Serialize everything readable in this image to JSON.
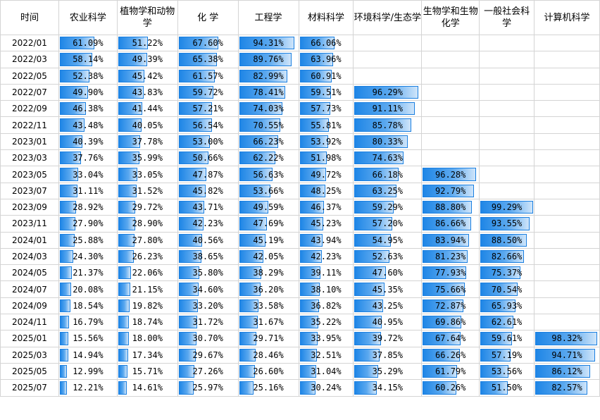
{
  "headers": [
    "时间",
    "农业科学",
    "植物学和动物学",
    "化 学",
    "工程学",
    "材料科学",
    "环境科学/生态学",
    "生物学和生物化学",
    "一般社会科学",
    "计算机科学"
  ],
  "rows": [
    {
      "date": "2022/01",
      "values": [
        "61.09%",
        "51.22%",
        "67.60%",
        "94.31%",
        "66.06%",
        "",
        "",
        "",
        ""
      ]
    },
    {
      "date": "2022/03",
      "values": [
        "58.14%",
        "49.39%",
        "65.38%",
        "89.76%",
        "63.96%",
        "",
        "",
        "",
        ""
      ]
    },
    {
      "date": "2022/05",
      "values": [
        "52.38%",
        "45.42%",
        "61.57%",
        "82.99%",
        "60.91%",
        "",
        "",
        "",
        ""
      ]
    },
    {
      "date": "2022/07",
      "values": [
        "49.90%",
        "43.83%",
        "59.72%",
        "78.41%",
        "59.51%",
        "96.29%",
        "",
        "",
        ""
      ]
    },
    {
      "date": "2022/09",
      "values": [
        "46.38%",
        "41.44%",
        "57.21%",
        "74.03%",
        "57.73%",
        "91.11%",
        "",
        "",
        ""
      ]
    },
    {
      "date": "2022/11",
      "values": [
        "43.48%",
        "40.05%",
        "56.54%",
        "70.55%",
        "55.81%",
        "85.78%",
        "",
        "",
        ""
      ]
    },
    {
      "date": "2023/01",
      "values": [
        "40.39%",
        "37.78%",
        "53.00%",
        "66.23%",
        "53.92%",
        "80.33%",
        "",
        "",
        ""
      ]
    },
    {
      "date": "2023/03",
      "values": [
        "37.76%",
        "35.99%",
        "50.66%",
        "62.22%",
        "51.98%",
        "74.63%",
        "",
        "",
        ""
      ]
    },
    {
      "date": "2023/05",
      "values": [
        "33.04%",
        "33.05%",
        "47.87%",
        "56.63%",
        "49.72%",
        "66.18%",
        "96.28%",
        "",
        ""
      ]
    },
    {
      "date": "2023/07",
      "values": [
        "31.11%",
        "31.52%",
        "45.82%",
        "53.66%",
        "48.25%",
        "63.25%",
        "92.79%",
        "",
        ""
      ]
    },
    {
      "date": "2023/09",
      "values": [
        "28.92%",
        "29.72%",
        "43.71%",
        "49.59%",
        "46.37%",
        "59.29%",
        "88.80%",
        "99.29%",
        ""
      ]
    },
    {
      "date": "2023/11",
      "values": [
        "27.90%",
        "28.90%",
        "42.23%",
        "47.69%",
        "45.23%",
        "57.20%",
        "86.66%",
        "93.55%",
        ""
      ]
    },
    {
      "date": "2024/01",
      "values": [
        "25.88%",
        "27.80%",
        "40.56%",
        "45.19%",
        "43.94%",
        "54.95%",
        "83.94%",
        "88.50%",
        ""
      ]
    },
    {
      "date": "2024/03",
      "values": [
        "24.30%",
        "26.23%",
        "38.65%",
        "42.05%",
        "42.23%",
        "52.63%",
        "81.23%",
        "82.66%",
        ""
      ]
    },
    {
      "date": "2024/05",
      "values": [
        "21.37%",
        "22.06%",
        "35.80%",
        "38.29%",
        "39.11%",
        "47.60%",
        "77.93%",
        "75.37%",
        ""
      ]
    },
    {
      "date": "2024/07",
      "values": [
        "20.08%",
        "21.15%",
        "34.60%",
        "36.20%",
        "38.10%",
        "45.35%",
        "75.66%",
        "70.54%",
        ""
      ]
    },
    {
      "date": "2024/09",
      "values": [
        "18.54%",
        "19.82%",
        "33.20%",
        "33.58%",
        "36.82%",
        "43.25%",
        "72.87%",
        "65.93%",
        ""
      ]
    },
    {
      "date": "2024/11",
      "values": [
        "16.79%",
        "18.74%",
        "31.72%",
        "31.67%",
        "35.22%",
        "40.95%",
        "69.86%",
        "62.61%",
        ""
      ]
    },
    {
      "date": "2025/01",
      "values": [
        "15.56%",
        "18.00%",
        "30.70%",
        "29.71%",
        "33.95%",
        "39.72%",
        "67.64%",
        "59.61%",
        "98.32%"
      ]
    },
    {
      "date": "2025/03",
      "values": [
        "14.94%",
        "17.34%",
        "29.67%",
        "28.46%",
        "32.51%",
        "37.85%",
        "66.26%",
        "57.19%",
        "94.71%"
      ]
    },
    {
      "date": "2025/05",
      "values": [
        "12.99%",
        "15.71%",
        "27.26%",
        "26.60%",
        "31.04%",
        "35.29%",
        "61.79%",
        "53.56%",
        "86.12%"
      ]
    },
    {
      "date": "2025/07",
      "values": [
        "12.21%",
        "14.61%",
        "25.97%",
        "25.16%",
        "30.24%",
        "34.15%",
        "60.26%",
        "51.50%",
        "82.57%"
      ]
    }
  ],
  "colors": {
    "bar_start": "#1f86e6",
    "bar_end": "#cfe5fa",
    "grid": "#d4d4d4"
  }
}
